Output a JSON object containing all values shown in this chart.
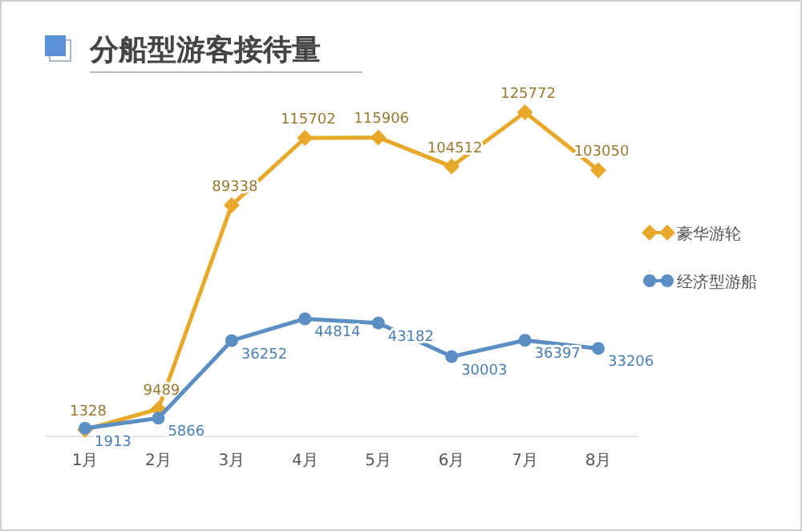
{
  "chart_data": {
    "type": "line",
    "title": "分船型游客接待量",
    "categories": [
      "1月",
      "2月",
      "3月",
      "4月",
      "5月",
      "6月",
      "7月",
      "8月"
    ],
    "series": [
      {
        "name": "豪华游轮",
        "color": "#e8a92a",
        "marker": "diamond",
        "values": [
          1328,
          9489,
          89338,
          115702,
          115906,
          104512,
          125772,
          103050
        ]
      },
      {
        "name": "经济型游船",
        "color": "#5b8fc4",
        "marker": "circle",
        "values": [
          1913,
          5866,
          36252,
          44814,
          43182,
          30003,
          36397,
          33206
        ]
      }
    ],
    "data_labels": true,
    "legend": "right",
    "grid": false
  }
}
